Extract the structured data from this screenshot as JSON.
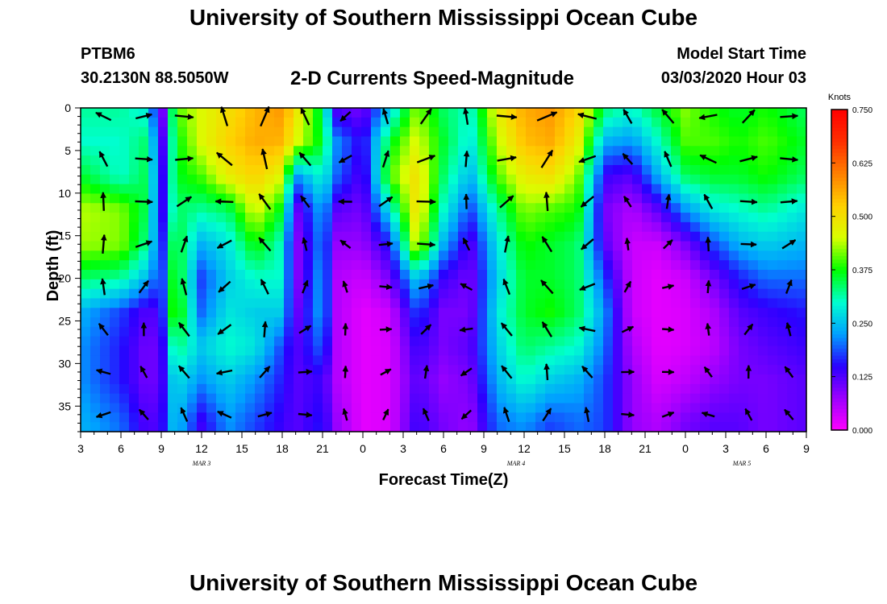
{
  "title": "University of Southern Mississippi Ocean Cube",
  "station": "PTBM6",
  "coords": "30.2130N 88.5050W",
  "subtitle": "2-D Currents Speed-Magnitude",
  "model_start_label": "Model Start Time",
  "model_start_value": "03/03/2020 Hour 03",
  "bottom_title": "University of Southern Mississippi Ocean Cube",
  "chart_data": {
    "type": "heatmap",
    "title": "2-D Currents Speed-Magnitude",
    "xlabel": "Forecast Time(Z)",
    "ylabel": "Depth (ft)",
    "x_tick_labels": [
      "3",
      "6",
      "9",
      "12",
      "15",
      "18",
      "21",
      "0",
      "3",
      "6",
      "9",
      "12",
      "15",
      "18",
      "21",
      "0",
      "3",
      "6",
      "9"
    ],
    "date_labels": [
      {
        "label": "MAR 3",
        "hour_index": 3
      },
      {
        "label": "MAR 4",
        "hour_index": 10.8
      },
      {
        "label": "MAR 5",
        "hour_index": 16.4
      }
    ],
    "y_ticks": [
      0,
      5,
      10,
      15,
      20,
      25,
      30,
      35
    ],
    "ylim": [
      0,
      38
    ],
    "x_range_hours": [
      3,
      57
    ],
    "colorbar": {
      "title": "Knots",
      "range": [
        0,
        0.75
      ],
      "tick_labels": [
        "0.000",
        "0.125",
        "0.250",
        "0.375",
        "0.500",
        "0.625",
        "0.750"
      ],
      "stops": [
        "#ff00ff",
        "#9d00ff",
        "#2a00ff",
        "#00a0ff",
        "#00ffd0",
        "#00ff00",
        "#d8ff00",
        "#ffd000",
        "#ff8000",
        "#ff3000",
        "#ff0000"
      ]
    },
    "depths_ft": [
      0,
      4,
      8,
      12,
      16,
      20,
      24,
      28,
      32,
      37
    ],
    "speed_knots_columns": [
      {
        "hour": 3,
        "speed": [
          0.32,
          0.3,
          0.36,
          0.44,
          0.43,
          0.34,
          0.24,
          0.22,
          0.22,
          0.24
        ]
      },
      {
        "hour": 6,
        "speed": [
          0.32,
          0.3,
          0.3,
          0.42,
          0.42,
          0.32,
          0.18,
          0.16,
          0.16,
          0.2
        ]
      },
      {
        "hour": 8,
        "speed": [
          0.28,
          0.34,
          0.35,
          0.34,
          0.32,
          0.24,
          0.12,
          0.1,
          0.1,
          0.12
        ]
      },
      {
        "hour": 9,
        "speed": [
          0.06,
          0.1,
          0.12,
          0.12,
          0.14,
          0.16,
          0.14,
          0.12,
          0.12,
          0.14
        ]
      },
      {
        "hour": 10,
        "speed": [
          0.4,
          0.36,
          0.36,
          0.34,
          0.38,
          0.4,
          0.42,
          0.34,
          0.28,
          0.26
        ]
      },
      {
        "hour": 12,
        "speed": [
          0.46,
          0.46,
          0.4,
          0.32,
          0.24,
          0.18,
          0.2,
          0.26,
          0.22,
          0.14
        ]
      },
      {
        "hour": 14,
        "speed": [
          0.5,
          0.52,
          0.48,
          0.34,
          0.28,
          0.26,
          0.28,
          0.3,
          0.26,
          0.22
        ]
      },
      {
        "hour": 16,
        "speed": [
          0.55,
          0.56,
          0.52,
          0.46,
          0.38,
          0.3,
          0.26,
          0.28,
          0.22,
          0.18
        ]
      },
      {
        "hour": 18,
        "speed": [
          0.58,
          0.55,
          0.46,
          0.36,
          0.3,
          0.3,
          0.26,
          0.18,
          0.16,
          0.14
        ]
      },
      {
        "hour": 19,
        "speed": [
          0.5,
          0.46,
          0.22,
          0.1,
          0.08,
          0.08,
          0.1,
          0.12,
          0.12,
          0.12
        ]
      },
      {
        "hour": 21,
        "speed": [
          0.34,
          0.36,
          0.3,
          0.24,
          0.22,
          0.24,
          0.24,
          0.2,
          0.14,
          0.16
        ]
      },
      {
        "hour": 22,
        "speed": [
          0.12,
          0.22,
          0.2,
          0.12,
          0.08,
          0.06,
          0.06,
          0.06,
          0.06,
          0.08
        ]
      },
      {
        "hour": 24,
        "speed": [
          0.1,
          0.14,
          0.12,
          0.1,
          0.08,
          0.04,
          0.02,
          0.02,
          0.02,
          0.02
        ]
      },
      {
        "hour": 26,
        "speed": [
          0.26,
          0.36,
          0.4,
          0.28,
          0.16,
          0.1,
          0.04,
          0.03,
          0.03,
          0.03
        ]
      },
      {
        "hour": 28,
        "speed": [
          0.42,
          0.46,
          0.5,
          0.5,
          0.46,
          0.26,
          0.18,
          0.14,
          0.12,
          0.14
        ]
      },
      {
        "hour": 30,
        "speed": [
          0.34,
          0.36,
          0.34,
          0.3,
          0.24,
          0.14,
          0.1,
          0.1,
          0.08,
          0.1
        ]
      },
      {
        "hour": 32,
        "speed": [
          0.3,
          0.28,
          0.24,
          0.18,
          0.12,
          0.1,
          0.1,
          0.12,
          0.1,
          0.08
        ]
      },
      {
        "hour": 34,
        "speed": [
          0.48,
          0.44,
          0.4,
          0.32,
          0.28,
          0.26,
          0.28,
          0.26,
          0.24,
          0.2
        ]
      },
      {
        "hour": 36,
        "speed": [
          0.56,
          0.54,
          0.48,
          0.42,
          0.38,
          0.36,
          0.36,
          0.34,
          0.3,
          0.22
        ]
      },
      {
        "hour": 38,
        "speed": [
          0.58,
          0.56,
          0.5,
          0.4,
          0.36,
          0.36,
          0.38,
          0.32,
          0.26,
          0.18
        ]
      },
      {
        "hour": 40,
        "speed": [
          0.52,
          0.48,
          0.42,
          0.38,
          0.34,
          0.34,
          0.34,
          0.3,
          0.24,
          0.2
        ]
      },
      {
        "hour": 42,
        "speed": [
          0.34,
          0.24,
          0.14,
          0.1,
          0.12,
          0.18,
          0.22,
          0.2,
          0.18,
          0.18
        ]
      },
      {
        "hour": 44,
        "speed": [
          0.3,
          0.22,
          0.12,
          0.06,
          0.04,
          0.04,
          0.04,
          0.06,
          0.08,
          0.08
        ]
      },
      {
        "hour": 46,
        "speed": [
          0.36,
          0.3,
          0.24,
          0.12,
          0.04,
          0.02,
          0.02,
          0.02,
          0.03,
          0.06
        ]
      },
      {
        "hour": 48,
        "speed": [
          0.42,
          0.4,
          0.34,
          0.22,
          0.1,
          0.04,
          0.03,
          0.03,
          0.05,
          0.1
        ]
      },
      {
        "hour": 50,
        "speed": [
          0.38,
          0.4,
          0.36,
          0.28,
          0.18,
          0.1,
          0.06,
          0.05,
          0.08,
          0.12
        ]
      },
      {
        "hour": 52,
        "speed": [
          0.36,
          0.38,
          0.36,
          0.3,
          0.24,
          0.16,
          0.12,
          0.1,
          0.1,
          0.12
        ]
      },
      {
        "hour": 54,
        "speed": [
          0.38,
          0.4,
          0.38,
          0.32,
          0.26,
          0.2,
          0.14,
          0.12,
          0.1,
          0.1
        ]
      },
      {
        "hour": 57,
        "speed": [
          0.34,
          0.36,
          0.34,
          0.28,
          0.24,
          0.2,
          0.16,
          0.14,
          0.12,
          0.12
        ]
      }
    ]
  }
}
